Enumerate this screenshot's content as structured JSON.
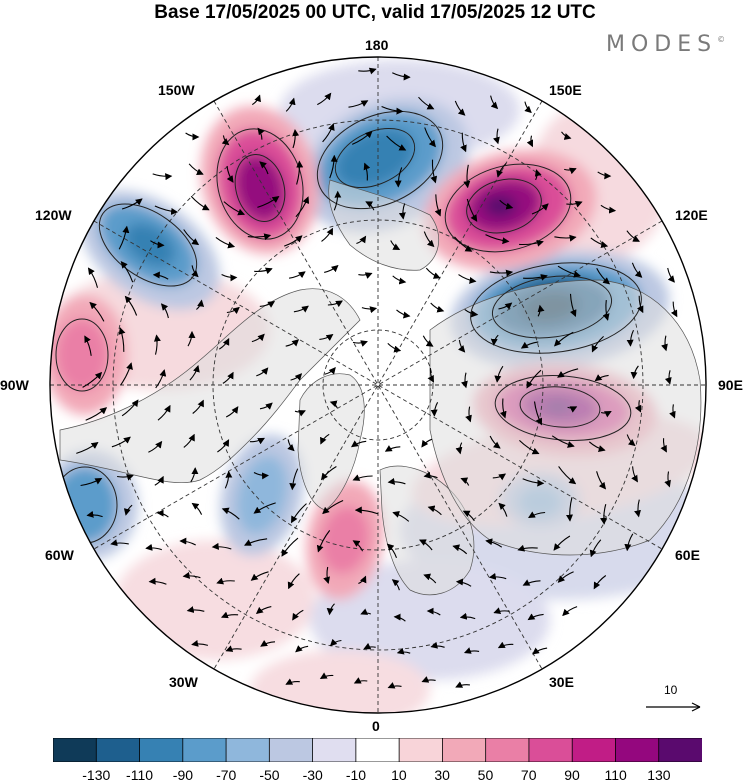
{
  "title": "Base 17/05/2025 00 UTC, valid 17/05/2025 12 UTC",
  "brand": "MODES",
  "brand_mark": "©",
  "longitude_labels": {
    "lon_180": "180",
    "lon_150e": "150E",
    "lon_120e": "120E",
    "lon_90e": "90E",
    "lon_60e": "60E",
    "lon_30e": "30E",
    "lon_0": "0",
    "lon_30w": "30W",
    "lon_60w": "60W",
    "lon_90w": "90W",
    "lon_120w": "120W",
    "lon_150w": "150W"
  },
  "vector_reference": {
    "label": "10"
  },
  "colorbar": {
    "colors": [
      "#0f3a58",
      "#1e5f8e",
      "#3681b3",
      "#5b9ccb",
      "#8fb7dc",
      "#bcc8e2",
      "#e0def0",
      "#ffffff",
      "#f8d4d9",
      "#f2a9b8",
      "#ea7fa6",
      "#da4e98",
      "#c11d86",
      "#94077e",
      "#5a0a6e"
    ],
    "ticks": [
      "-130",
      "-110",
      "-90",
      "-70",
      "-50",
      "-30",
      "-10",
      "10",
      "30",
      "50",
      "70",
      "90",
      "110",
      "130"
    ]
  }
}
